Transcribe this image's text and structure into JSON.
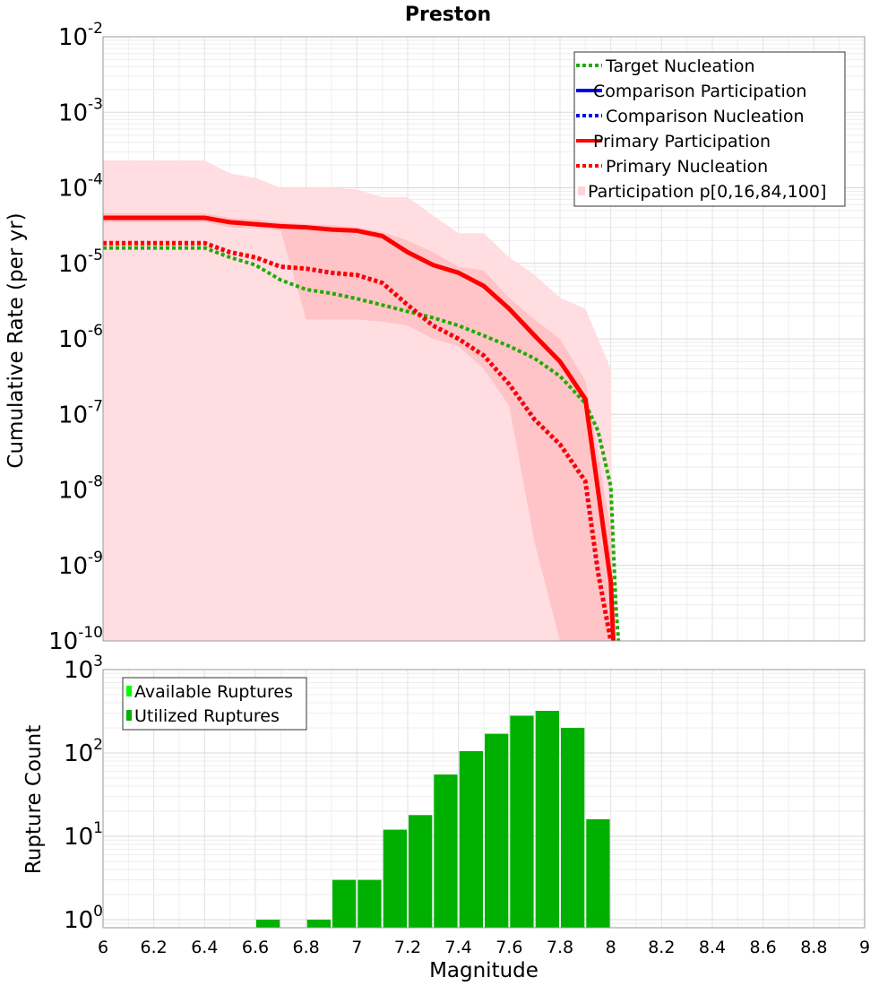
{
  "chart_data": [
    {
      "type": "line",
      "title": "Preston",
      "xlabel": "",
      "ylabel": "Cumulative Rate (per yr)",
      "xlim": [
        6,
        9
      ],
      "ylim": [
        1e-10,
        0.01
      ],
      "yscale": "log",
      "y_ticks": [
        {
          "base": "10",
          "exp": "-2",
          "value": 0.01
        },
        {
          "base": "10",
          "exp": "-3",
          "value": 0.001
        },
        {
          "base": "10",
          "exp": "-4",
          "value": 0.0001
        },
        {
          "base": "10",
          "exp": "-5",
          "value": 1e-05
        },
        {
          "base": "10",
          "exp": "-6",
          "value": 1e-06
        },
        {
          "base": "10",
          "exp": "-7",
          "value": 1e-07
        },
        {
          "base": "10",
          "exp": "-8",
          "value": 1e-08
        },
        {
          "base": "10",
          "exp": "-9",
          "value": 1e-09
        },
        {
          "base": "10",
          "exp": "-10",
          "value": 1e-10
        }
      ],
      "legend": [
        {
          "label": "Target Nucleation",
          "color": "#22aa00",
          "style": "dotted"
        },
        {
          "label": "Comparison Participation",
          "color": "#0000ee",
          "style": "solid"
        },
        {
          "label": "Comparison Nucleation",
          "color": "#0000ee",
          "style": "dotted"
        },
        {
          "label": "Primary Participation",
          "color": "#ff0000",
          "style": "solid"
        },
        {
          "label": "Primary Nucleation",
          "color": "#ff0000",
          "style": "dotted"
        },
        {
          "label": "Participation p[0,16,84,100]",
          "color": "#ffd2d8",
          "style": "fill"
        }
      ],
      "band_outer": {
        "color": "#ffdde1",
        "x": [
          6.0,
          6.4,
          6.5,
          6.6,
          6.7,
          6.8,
          6.9,
          7.0,
          7.1,
          7.2,
          7.3,
          7.4,
          7.5,
          7.6,
          7.7,
          7.8,
          7.9,
          8.0,
          8.01
        ],
        "upper": [
          0.00023,
          0.00023,
          0.000155,
          0.000135,
          0.0001,
          0.0001,
          0.0001,
          9.5e-05,
          7.5e-05,
          7.5e-05,
          4.3e-05,
          2.5e-05,
          2.5e-05,
          1.2e-05,
          7e-06,
          3.5e-06,
          2.5e-06,
          4e-07,
          1e-10
        ],
        "lower": [
          1e-10,
          1e-10,
          1e-10,
          1e-10,
          1e-10,
          1e-10,
          1e-10,
          1e-10,
          1e-10,
          1e-10,
          1e-10,
          1e-10,
          1e-10,
          1e-10,
          1e-10,
          1e-10,
          1e-10,
          1e-10,
          1e-10
        ]
      },
      "band_inner": {
        "color": "#ffc4c8",
        "x": [
          6.0,
          6.4,
          6.5,
          6.6,
          6.7,
          6.8,
          6.9,
          7.0,
          7.1,
          7.2,
          7.3,
          7.4,
          7.5,
          7.6,
          7.7,
          7.8,
          7.9,
          8.0,
          8.01
        ],
        "upper": [
          4.6e-05,
          4.6e-05,
          4e-05,
          3.8e-05,
          3.5e-05,
          3.3e-05,
          3.2e-05,
          3e-05,
          2.6e-05,
          2e-05,
          1.4e-05,
          9e-06,
          8e-06,
          3.5e-06,
          1.8e-06,
          1e-06,
          2.8e-07,
          3e-09,
          1e-10
        ],
        "lower": [
          3.5e-05,
          3.5e-05,
          3e-05,
          2.9e-05,
          2.7e-05,
          1.8e-06,
          1.8e-06,
          1.8e-06,
          1.7e-06,
          1.5e-06,
          1e-06,
          8e-07,
          4e-07,
          1.3e-07,
          2e-09,
          1e-10,
          1e-10,
          1e-10,
          1e-10
        ]
      },
      "series": [
        {
          "name": "Target Nucleation",
          "color": "#22aa00",
          "style": "dotted",
          "width": 4,
          "x": [
            6.0,
            6.4,
            6.5,
            6.6,
            6.7,
            6.8,
            6.9,
            7.0,
            7.1,
            7.2,
            7.3,
            7.4,
            7.5,
            7.6,
            7.7,
            7.8,
            7.9,
            7.95,
            8.0,
            8.02,
            8.03
          ],
          "values": [
            1.6e-05,
            1.6e-05,
            1.2e-05,
            9.5e-06,
            6e-06,
            4.5e-06,
            4e-06,
            3.4e-06,
            2.8e-06,
            2.3e-06,
            1.9e-06,
            1.5e-06,
            1.1e-06,
            8e-07,
            5.5e-07,
            3.2e-07,
            1.4e-07,
            6e-08,
            1.1e-08,
            3e-10,
            1e-10
          ]
        },
        {
          "name": "Comparison Participation",
          "color": "#0000ee",
          "style": "solid",
          "width": 4,
          "x": [
            6.0,
            6.4,
            6.5,
            6.6,
            6.7,
            6.8,
            6.9,
            7.0,
            7.1,
            7.2,
            7.3,
            7.4,
            7.5,
            7.6,
            7.7,
            7.8,
            7.9,
            8.0,
            8.01
          ],
          "values": [
            4e-05,
            4e-05,
            3.5e-05,
            3.3e-05,
            3.1e-05,
            3e-05,
            2.8e-05,
            2.7e-05,
            2.3e-05,
            1.4e-05,
            9.5e-06,
            7.5e-06,
            5e-06,
            2.5e-06,
            1.1e-06,
            5e-07,
            1.6e-07,
            6e-10,
            1e-10
          ]
        },
        {
          "name": "Comparison Nucleation",
          "color": "#0000ee",
          "style": "dotted",
          "width": 4,
          "x": [
            6.0,
            6.4,
            6.5,
            6.6,
            6.7,
            6.8,
            6.9,
            7.0,
            7.1,
            7.2,
            7.3,
            7.4,
            7.5,
            7.6,
            7.7,
            7.8,
            7.9,
            7.95,
            8.0
          ],
          "values": [
            1.85e-05,
            1.85e-05,
            1.4e-05,
            1.2e-05,
            9e-06,
            8.5e-06,
            7.5e-06,
            7e-06,
            5.5e-06,
            2.8e-06,
            1.5e-06,
            1e-06,
            6e-07,
            2.5e-07,
            8.5e-08,
            4e-08,
            1.3e-08,
            8e-10,
            1e-10
          ]
        },
        {
          "name": "Primary Participation",
          "color": "#ff0000",
          "style": "solid",
          "width": 5,
          "x": [
            6.0,
            6.4,
            6.5,
            6.6,
            6.7,
            6.8,
            6.9,
            7.0,
            7.1,
            7.2,
            7.3,
            7.4,
            7.5,
            7.6,
            7.7,
            7.8,
            7.9,
            8.0,
            8.01
          ],
          "values": [
            4e-05,
            4e-05,
            3.5e-05,
            3.3e-05,
            3.1e-05,
            3e-05,
            2.8e-05,
            2.7e-05,
            2.3e-05,
            1.4e-05,
            9.5e-06,
            7.5e-06,
            5e-06,
            2.5e-06,
            1.1e-06,
            5e-07,
            1.6e-07,
            6e-10,
            1e-10
          ]
        },
        {
          "name": "Primary Nucleation",
          "color": "#ff0000",
          "style": "dotted",
          "width": 5,
          "x": [
            6.0,
            6.4,
            6.5,
            6.6,
            6.7,
            6.8,
            6.9,
            7.0,
            7.1,
            7.2,
            7.3,
            7.4,
            7.5,
            7.6,
            7.7,
            7.8,
            7.9,
            7.95,
            8.0
          ],
          "values": [
            1.85e-05,
            1.85e-05,
            1.4e-05,
            1.2e-05,
            9e-06,
            8.5e-06,
            7.5e-06,
            7e-06,
            5.5e-06,
            2.8e-06,
            1.5e-06,
            1e-06,
            6e-07,
            2.5e-07,
            8.5e-08,
            4e-08,
            1.3e-08,
            8e-10,
            1e-10
          ]
        }
      ]
    },
    {
      "type": "bar",
      "title": "",
      "xlabel": "Magnitude",
      "ylabel": "Rupture Count",
      "xlim": [
        6,
        9
      ],
      "ylim": [
        0.8,
        1000
      ],
      "yscale": "log",
      "y_ticks": [
        {
          "base": "10",
          "exp": "3",
          "value": 1000
        },
        {
          "base": "10",
          "exp": "2",
          "value": 100
        },
        {
          "base": "10",
          "exp": "1",
          "value": 10
        },
        {
          "base": "10",
          "exp": "0",
          "value": 1
        }
      ],
      "x_ticks": [
        "6",
        "6.2",
        "6.4",
        "6.6",
        "6.8",
        "7",
        "7.2",
        "7.4",
        "7.6",
        "7.8",
        "8",
        "8.2",
        "8.4",
        "8.6",
        "8.8",
        "9"
      ],
      "x_tick_values": [
        6,
        6.2,
        6.4,
        6.6,
        6.8,
        7,
        7.2,
        7.4,
        7.6,
        7.8,
        8,
        8.2,
        8.4,
        8.6,
        8.8,
        9
      ],
      "legend": [
        {
          "label": "Available Ruptures",
          "color": "#00ff00"
        },
        {
          "label": "Utilized Ruptures",
          "color": "#00b000"
        }
      ],
      "bar_width": 0.1,
      "bar_color": "#00b000",
      "bins": [
        6.65,
        6.85,
        6.95,
        7.05,
        7.15,
        7.25,
        7.35,
        7.45,
        7.55,
        7.65,
        7.75,
        7.85,
        7.95
      ],
      "values": [
        1,
        1,
        3,
        3,
        12,
        18,
        55,
        105,
        170,
        280,
        320,
        200,
        16
      ]
    }
  ]
}
